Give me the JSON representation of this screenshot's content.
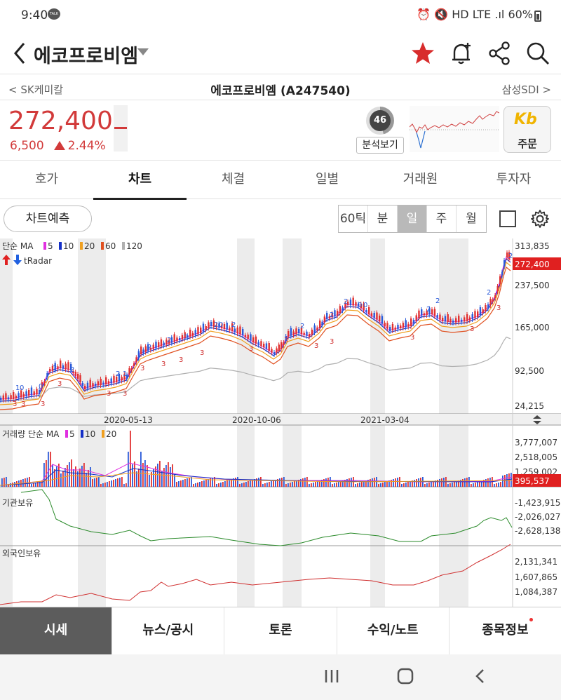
{
  "status": {
    "time": "9:40",
    "battery": "60%",
    "net": "HD LTE"
  },
  "header": {
    "title": "에코프로비엠"
  },
  "subheader": {
    "prev": "< SK케미칼",
    "current": "에코프로비엠 (A247540)",
    "next": "삼성SDI >"
  },
  "quote": {
    "price": "272,400",
    "change": "6,500",
    "change_pct": "2.44%",
    "score": "46",
    "analysis_label": "분석보기",
    "order_label": "주문",
    "broker_logo": "Kb"
  },
  "tabs": [
    "호가",
    "차트",
    "체결",
    "일별",
    "거래원",
    "투자자"
  ],
  "active_tab": "차트",
  "toolbar": {
    "predict_label": "차트예측",
    "periods": [
      "60틱",
      "분",
      "일",
      "주",
      "월"
    ],
    "selected_period": "일"
  },
  "chart_data": {
    "price": {
      "legend": "단순 MA",
      "ma_labels": [
        "5",
        "10",
        "20",
        "60",
        "120"
      ],
      "ma_colors": [
        "#e030e0",
        "#1530c8",
        "#f0a020",
        "#e05020",
        "#b0b0b0"
      ],
      "radar_label": "tRadar",
      "y_ticks": [
        "313,835",
        "237,500",
        "165,000",
        "92,500",
        "24,215"
      ],
      "current_label": "272,400",
      "x_ticks": [
        "2020-05-13",
        "2020-10-06",
        "2021-03-04"
      ]
    },
    "volume": {
      "legend": "거래량 단순 MA",
      "ma_labels": [
        "5",
        "10",
        "20"
      ],
      "y_ticks": [
        "3,777,007",
        "2,518,005",
        "1,259,002"
      ],
      "current_label": "395,537"
    },
    "institution": {
      "label": "기관보유",
      "y_ticks": [
        "-1,423,915",
        "-2,026,027",
        "-2,628,138"
      ]
    },
    "foreign": {
      "label": "외국인보유",
      "y_ticks": [
        "2,131,341",
        "1,607,865",
        "1,084,387"
      ]
    }
  },
  "bottom_nav": [
    "시세",
    "뉴스/공시",
    "토론",
    "수익/노트",
    "종목정보"
  ],
  "active_bottom": "시세"
}
